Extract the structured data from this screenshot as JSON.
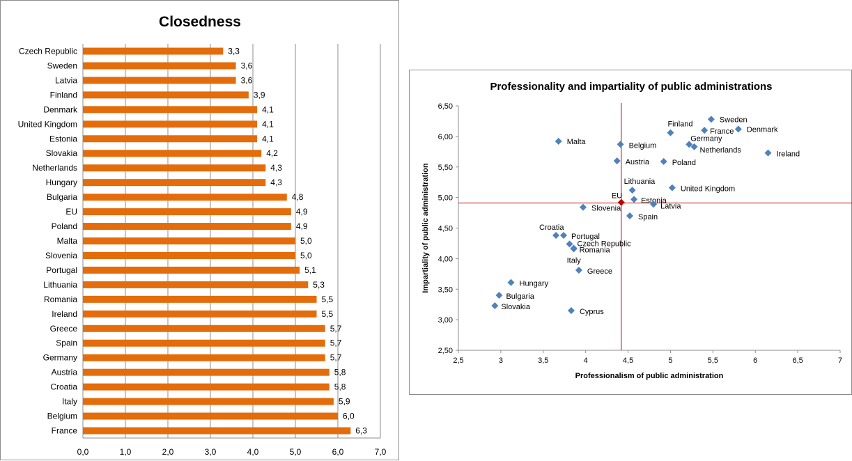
{
  "chart_data": [
    {
      "type": "bar",
      "orientation": "horizontal",
      "title": "Closedness",
      "categories": [
        "Czech Republic",
        "Sweden",
        "Latvia",
        "Finland",
        "Denmark",
        "United Kingdom",
        "Estonia",
        "Slovakia",
        "Netherlands",
        "Hungary",
        "Bulgaria",
        "EU",
        "Poland",
        "Malta",
        "Slovenia",
        "Portugal",
        "Lithuania",
        "Romania",
        "Ireland",
        "Greece",
        "Spain",
        "Germany",
        "Austria",
        "Croatia",
        "Italy",
        "Belgium",
        "France"
      ],
      "values": [
        3.3,
        3.6,
        3.6,
        3.9,
        4.1,
        4.1,
        4.1,
        4.2,
        4.3,
        4.3,
        4.8,
        4.9,
        4.9,
        5.0,
        5.0,
        5.1,
        5.3,
        5.5,
        5.5,
        5.7,
        5.7,
        5.7,
        5.8,
        5.8,
        5.9,
        6.0,
        6.3
      ],
      "data_labels": [
        "3,3",
        "3,6",
        "3,6",
        "3,9",
        "4,1",
        "4,1",
        "4,1",
        "4,2",
        "4,3",
        "4,3",
        "4,8",
        "4,9",
        "4,9",
        "5,0",
        "5,0",
        "5,1",
        "5,3",
        "5,5",
        "5,5",
        "5,7",
        "5,7",
        "5,7",
        "5,8",
        "5,8",
        "5,9",
        "6,0",
        "6,3"
      ],
      "xlim": [
        0,
        7
      ],
      "x_ticks": [
        "0,0",
        "1,0",
        "2,0",
        "3,0",
        "4,0",
        "5,0",
        "6,0",
        "7,0"
      ],
      "grid": "vertical",
      "color": "#e46c0a"
    },
    {
      "type": "scatter",
      "title": "Professionality and impartiality of public administrations",
      "xlabel": "Professionalism  of public administration",
      "ylabel": "Impartiality of public administration",
      "xlim": [
        2.5,
        7
      ],
      "ylim": [
        2.5,
        6.5
      ],
      "x_ticks": [
        "2,5",
        "3",
        "3,5",
        "4",
        "4,5",
        "5",
        "5,5",
        "6",
        "6,5",
        "7"
      ],
      "y_ticks": [
        "2,50",
        "3,00",
        "3,50",
        "4,00",
        "4,50",
        "5,00",
        "5,50",
        "6,00",
        "6,50"
      ],
      "reference_lines": {
        "x": 4.42,
        "y": 4.91,
        "color": "#c00000"
      },
      "marker_color": "#4f81bd",
      "highlight_color": "#c00000",
      "points": [
        {
          "label": "Sweden",
          "x": 5.48,
          "y": 6.28
        },
        {
          "label": "Finland",
          "x": 5.0,
          "y": 6.06
        },
        {
          "label": "France",
          "x": 5.4,
          "y": 6.1
        },
        {
          "label": "Denmark",
          "x": 5.8,
          "y": 6.12
        },
        {
          "label": "Malta",
          "x": 3.68,
          "y": 5.92
        },
        {
          "label": "Belgium",
          "x": 4.41,
          "y": 5.87
        },
        {
          "label": "Germany",
          "x": 5.22,
          "y": 5.87
        },
        {
          "label": "Netherlands",
          "x": 5.28,
          "y": 5.83
        },
        {
          "label": "Ireland",
          "x": 6.15,
          "y": 5.73
        },
        {
          "label": "Austria",
          "x": 4.37,
          "y": 5.6
        },
        {
          "label": "Poland",
          "x": 4.92,
          "y": 5.59
        },
        {
          "label": "Lithuania",
          "x": 4.55,
          "y": 5.12
        },
        {
          "label": "United Kingdom",
          "x": 5.02,
          "y": 5.16
        },
        {
          "label": "Estonia",
          "x": 4.57,
          "y": 4.97
        },
        {
          "label": "EU",
          "x": 4.42,
          "y": 4.92,
          "highlight": true
        },
        {
          "label": "Latvia",
          "x": 4.8,
          "y": 4.89
        },
        {
          "label": "Slovenia",
          "x": 3.97,
          "y": 4.84
        },
        {
          "label": "Spain",
          "x": 4.52,
          "y": 4.7
        },
        {
          "label": "Croatia",
          "x": 3.65,
          "y": 4.38
        },
        {
          "label": "Portugal",
          "x": 3.74,
          "y": 4.38
        },
        {
          "label": "Czech Republic",
          "x": 3.81,
          "y": 4.24
        },
        {
          "label": "Romania",
          "x": 3.86,
          "y": 4.16
        },
        {
          "label": "Italy",
          "x": 3.86,
          "y": 4.17
        },
        {
          "label": "Greece",
          "x": 3.92,
          "y": 3.81
        },
        {
          "label": "Hungary",
          "x": 3.12,
          "y": 3.61
        },
        {
          "label": "Bulgaria",
          "x": 2.98,
          "y": 3.4
        },
        {
          "label": "Slovakia",
          "x": 2.93,
          "y": 3.23
        },
        {
          "label": "Cyprus",
          "x": 3.83,
          "y": 3.15
        }
      ]
    }
  ]
}
